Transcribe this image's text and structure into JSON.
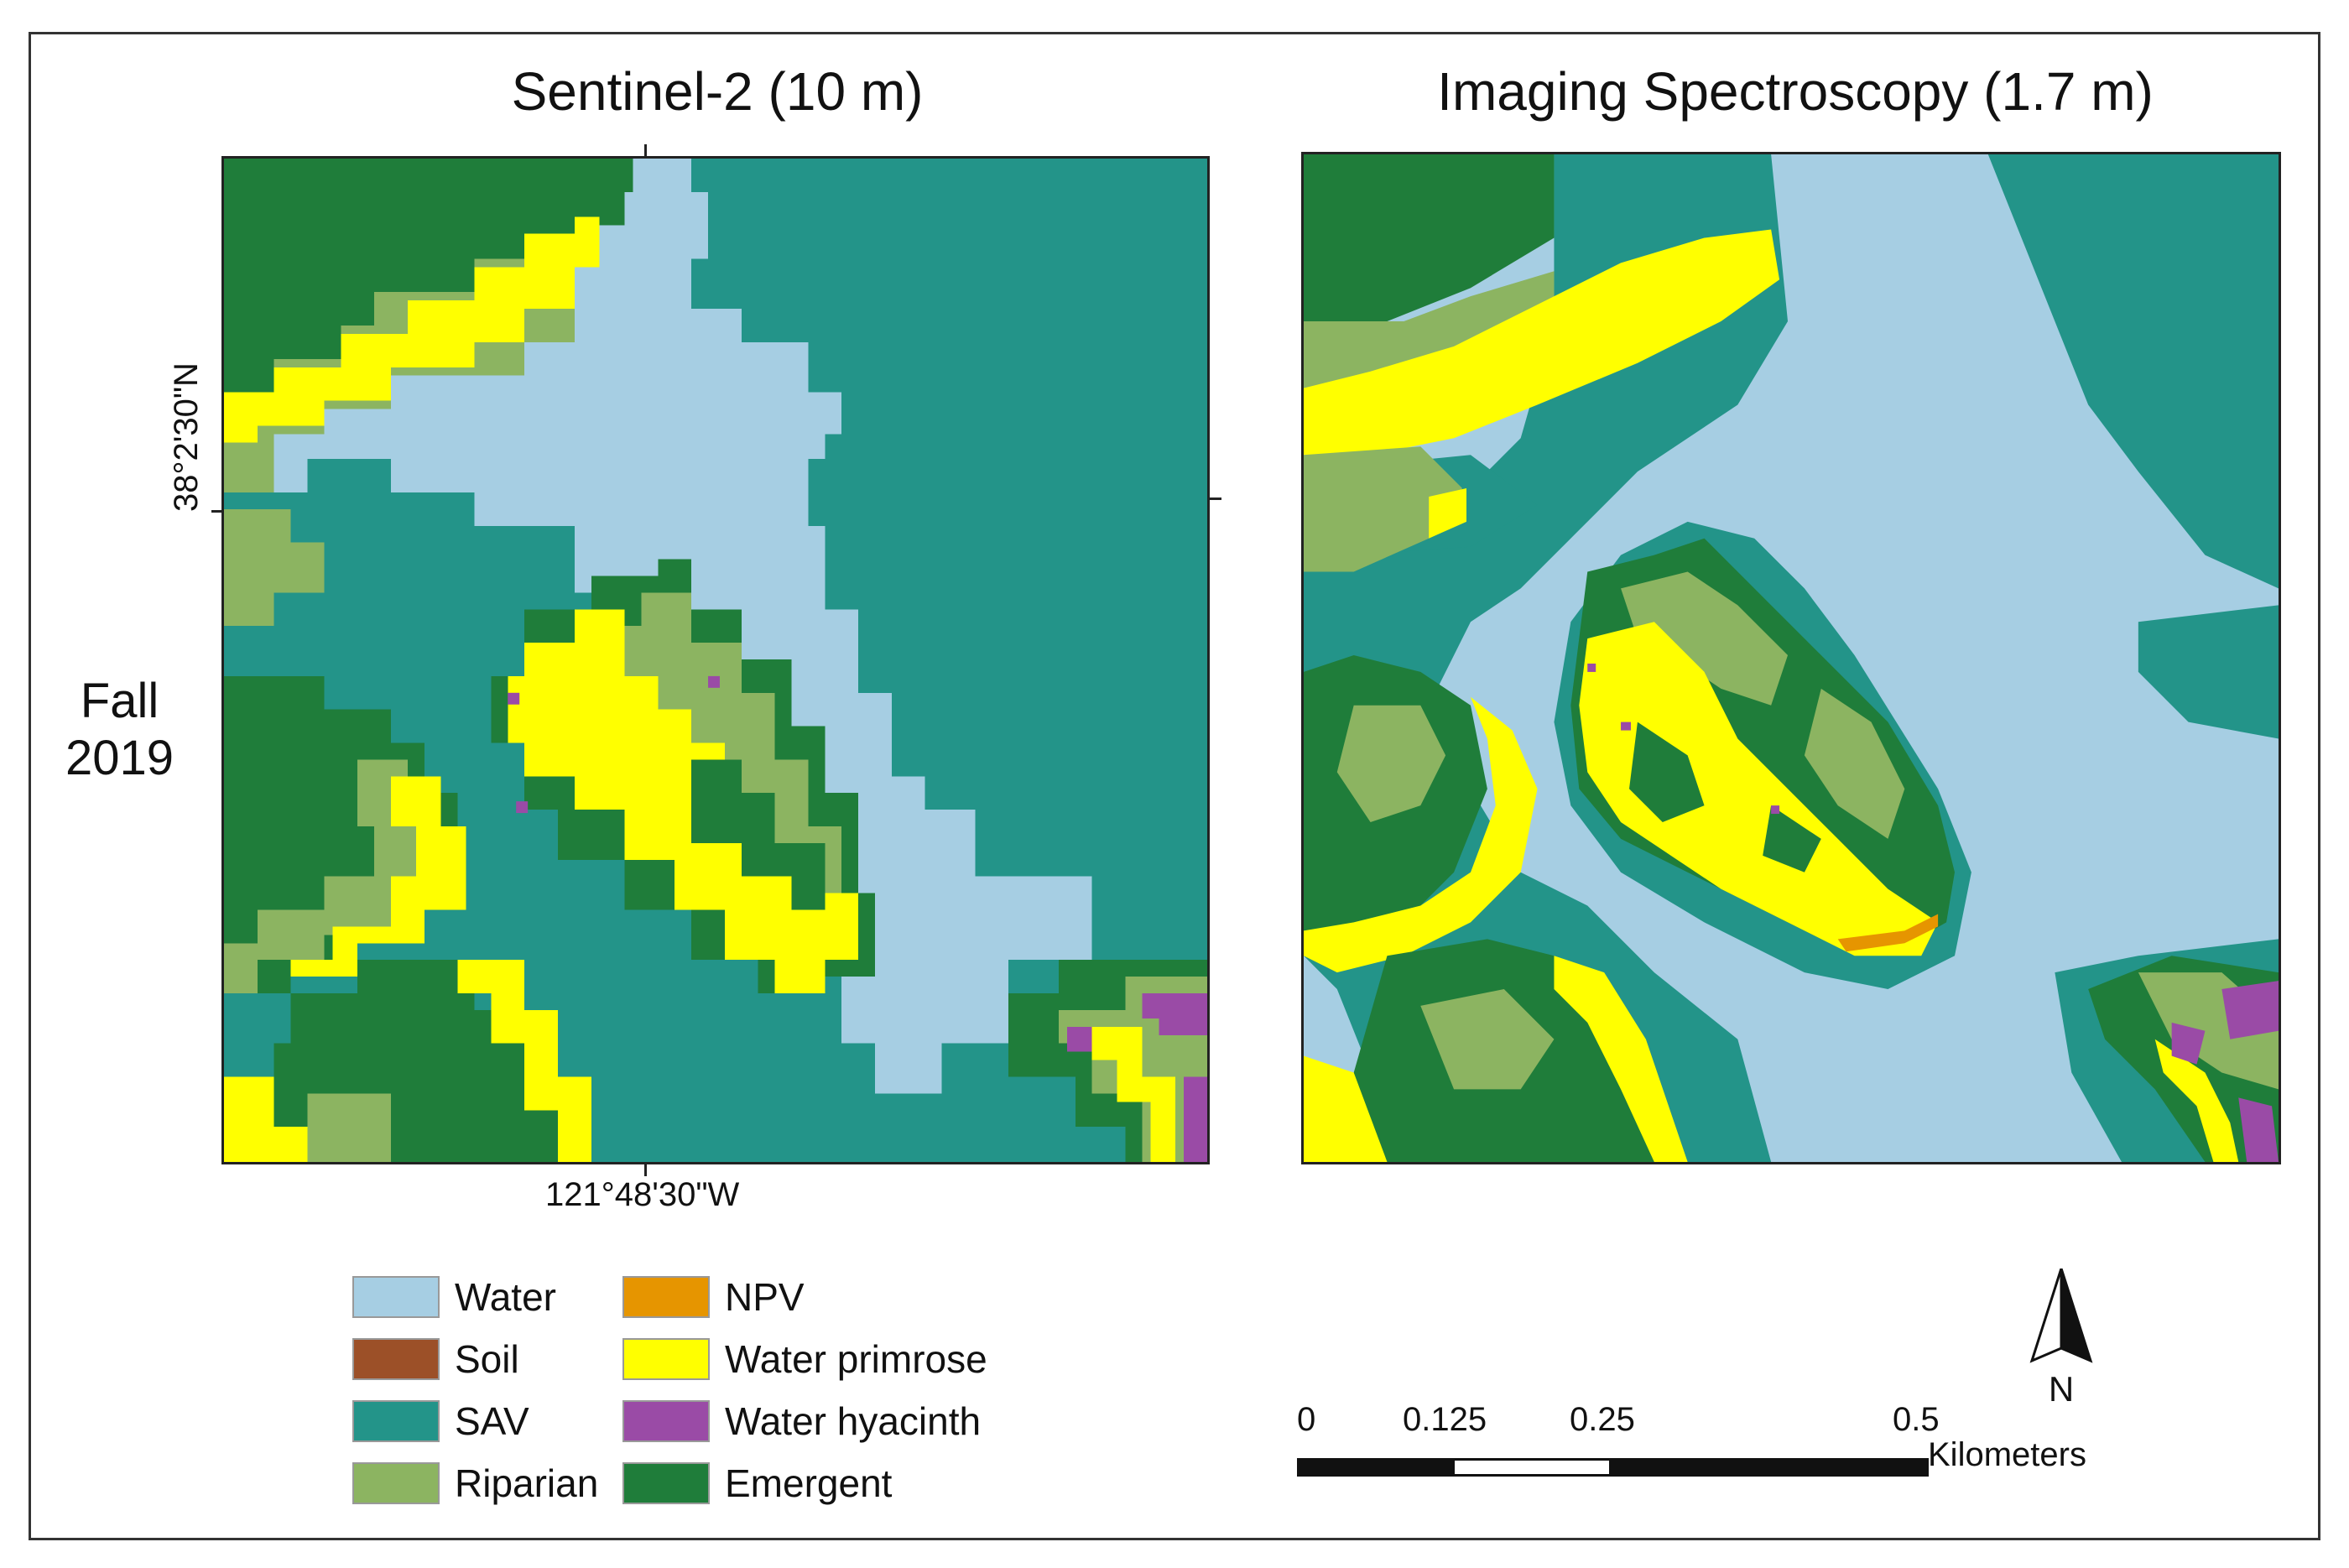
{
  "titles": {
    "left": "Sentinel-2 (10 m)",
    "right": "Imaging Spectroscopy (1.7 m)"
  },
  "row_label": {
    "line1": "Fall",
    "line2": "2019"
  },
  "coordinates": {
    "longitude": "121°48'30\"W",
    "latitude": "38°2'30\"N"
  },
  "legend": [
    {
      "label": "Water",
      "color": "#a6cee3"
    },
    {
      "label": "Soil",
      "color": "#9c5028"
    },
    {
      "label": "SAV",
      "color": "#239489"
    },
    {
      "label": "Riparian",
      "color": "#8cb461"
    },
    {
      "label": "NPV",
      "color": "#e69500"
    },
    {
      "label": "Water primrose",
      "color": "#ffff00"
    },
    {
      "label": "Water hyacinth",
      "color": "#9a4ba6"
    },
    {
      "label": "Emergent",
      "color": "#1f7d3a"
    }
  ],
  "scale_bar": {
    "ticks": [
      "0",
      "0.125",
      "0.25",
      "0.5"
    ],
    "unit": "Kilometers"
  },
  "north_arrow": {
    "label": "N"
  }
}
